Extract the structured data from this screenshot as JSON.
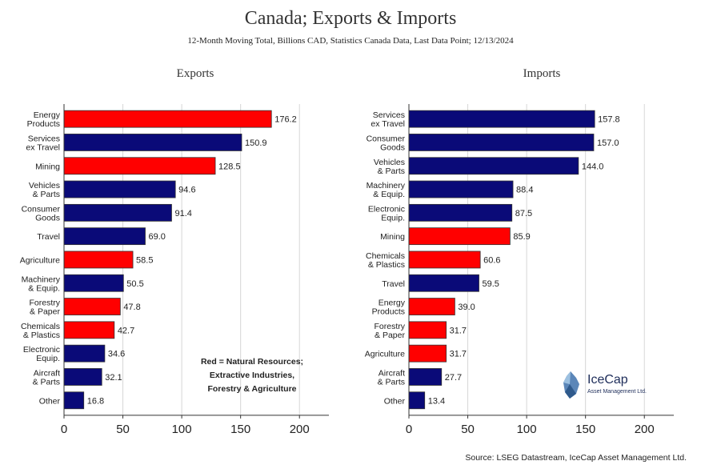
{
  "title": "Canada; Exports & Imports",
  "subtitle": "12-Month Moving Total, Billions CAD, Statistics Canada Data, Last Data Point; 12/13/2024",
  "note": [
    "Red = Natural Resources;",
    "Extractive Industries,",
    "Forestry & Agriculture"
  ],
  "source": "Source: LSEG Datastream, IceCap Asset Management Ltd.",
  "logo": {
    "name": "IceCap",
    "tagline": "Asset Management Ltd.",
    "icon": "iceberg-icon"
  },
  "colors": {
    "natural_resources": "#ff0000",
    "other": "#0a0a78"
  },
  "chart_data": [
    {
      "type": "bar",
      "orientation": "horizontal",
      "title": "Exports",
      "xlim": [
        0,
        225
      ],
      "xticks": [
        0,
        50,
        100,
        150,
        200
      ],
      "grid": true,
      "categories": [
        [
          "Energy",
          "Products"
        ],
        [
          "Services",
          "ex Travel"
        ],
        [
          "Mining"
        ],
        [
          "Vehicles",
          "& Parts"
        ],
        [
          "Consumer",
          "Goods"
        ],
        [
          "Travel"
        ],
        [
          "Agriculture"
        ],
        [
          "Machinery",
          "& Equip."
        ],
        [
          "Forestry",
          "& Paper"
        ],
        [
          "Chemicals",
          "& Plastics"
        ],
        [
          "Electronic",
          "Equip."
        ],
        [
          "Aircraft",
          "& Parts"
        ],
        [
          "Other"
        ]
      ],
      "values": [
        176.2,
        150.9,
        128.5,
        94.6,
        91.4,
        69.0,
        58.5,
        50.5,
        47.8,
        42.7,
        34.6,
        32.1,
        16.8
      ],
      "labels": [
        "176.2",
        "150.9",
        "128.5",
        "94.6",
        "91.4",
        "69.0",
        "58.5",
        "50.5",
        "47.8",
        "42.7",
        "34.6",
        "32.1",
        "16.8"
      ],
      "natural_resource": [
        true,
        false,
        true,
        false,
        false,
        false,
        true,
        false,
        true,
        true,
        false,
        false,
        false
      ]
    },
    {
      "type": "bar",
      "orientation": "horizontal",
      "title": "Imports",
      "xlim": [
        0,
        225
      ],
      "xticks": [
        0,
        50,
        100,
        150,
        200
      ],
      "grid": true,
      "categories": [
        [
          "Services",
          "ex Travel"
        ],
        [
          "Consumer",
          "Goods"
        ],
        [
          "Vehicles",
          "& Parts"
        ],
        [
          "Machinery",
          "& Equip."
        ],
        [
          "Electronic",
          "Equip."
        ],
        [
          "Mining"
        ],
        [
          "Chemicals",
          "& Plastics"
        ],
        [
          "Travel"
        ],
        [
          "Energy",
          "Products"
        ],
        [
          "Forestry",
          "& Paper"
        ],
        [
          "Agriculture"
        ],
        [
          "Aircraft",
          "& Parts"
        ],
        [
          "Other"
        ]
      ],
      "values": [
        157.8,
        157.0,
        144.0,
        88.4,
        87.5,
        85.9,
        60.6,
        59.5,
        39.0,
        31.7,
        31.7,
        27.7,
        13.4
      ],
      "labels": [
        "157.8",
        "157.0",
        "144.0",
        "88.4",
        "87.5",
        "85.9",
        "60.6",
        "59.5",
        "39.0",
        "31.7",
        "31.7",
        "27.7",
        "13.4"
      ],
      "natural_resource": [
        false,
        false,
        false,
        false,
        false,
        true,
        true,
        false,
        true,
        true,
        true,
        false,
        false
      ]
    }
  ]
}
